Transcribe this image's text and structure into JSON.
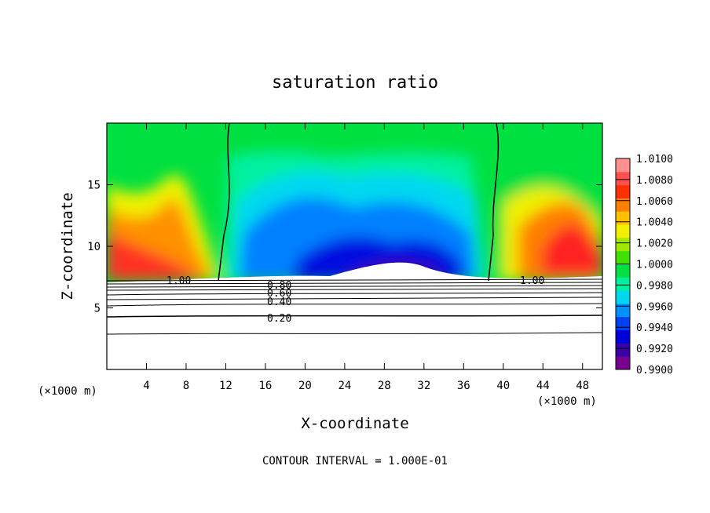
{
  "chart_data": {
    "type": "heatmap",
    "title": "saturation ratio",
    "xlabel": "X-coordinate",
    "ylabel": "Z-coordinate",
    "x_unit": "(×1000 m)",
    "z_unit": "(×1000 m)",
    "xlim": [
      0,
      50
    ],
    "ylim": [
      0,
      20
    ],
    "x_ticks": [
      4,
      8,
      12,
      16,
      20,
      24,
      28,
      32,
      36,
      40,
      44,
      48
    ],
    "y_ticks": [
      5,
      10,
      15
    ],
    "colorbar": {
      "min": 0.99,
      "max": 1.01,
      "labels": [
        "1.0100",
        "1.0080",
        "1.0060",
        "1.0040",
        "1.0020",
        "1.0000",
        "0.9980",
        "0.9960",
        "0.9940",
        "0.9920",
        "0.9900"
      ],
      "colors": [
        "#7a0090",
        "#3a00a8",
        "#0000d8",
        "#0040f0",
        "#0090ff",
        "#00d8f0",
        "#00f0a0",
        "#00e040",
        "#40e000",
        "#a0e800",
        "#f0f000",
        "#ffc000",
        "#ff8000",
        "#ff3000",
        "#ff5050",
        "#ff9090"
      ]
    },
    "contour_labels": [
      "1.00",
      "0.80",
      "0.60",
      "0.40",
      "0.20",
      "1.00"
    ],
    "contour_interval_text": "CONTOUR INTERVAL =  1.000E-01"
  }
}
